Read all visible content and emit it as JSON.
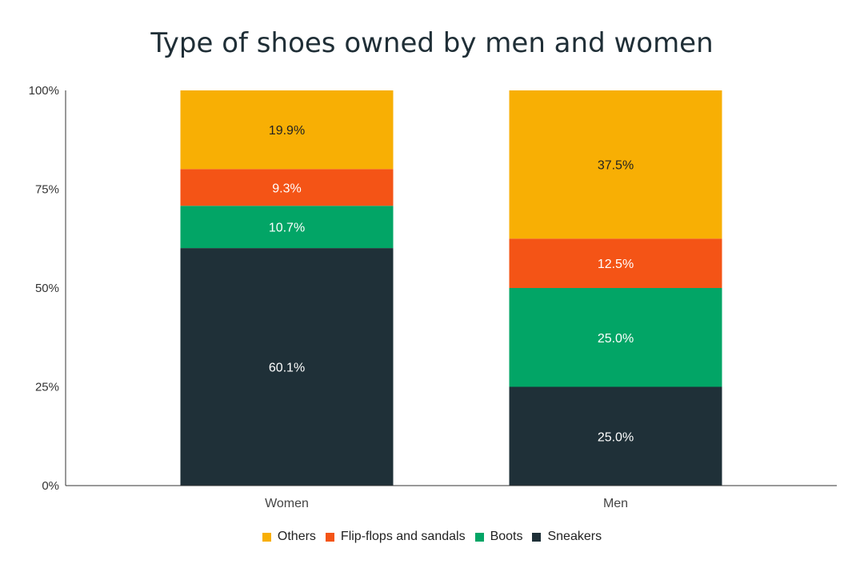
{
  "chart_data": {
    "type": "bar",
    "stacked": true,
    "title": "Type of shoes owned by men and women",
    "xlabel": "",
    "ylabel": "",
    "categories": [
      "Women",
      "Men"
    ],
    "ylim": [
      0,
      100
    ],
    "yticks": [
      "0%",
      "25%",
      "50%",
      "75%",
      "100%"
    ],
    "ytick_values": [
      0,
      25,
      50,
      75,
      100
    ],
    "grid": false,
    "legend_position": "bottom",
    "series": [
      {
        "name": "Sneakers",
        "color": "#1f3038",
        "label_color": "#ffffff",
        "values": [
          60.1,
          25.0
        ],
        "labels": [
          "60.1%",
          "25.0%"
        ]
      },
      {
        "name": "Boots",
        "color": "#02a566",
        "label_color": "#ffffff",
        "values": [
          10.7,
          25.0
        ],
        "labels": [
          "10.7%",
          "25.0%"
        ]
      },
      {
        "name": "Flip-flops and sandals",
        "color": "#f45416",
        "label_color": "#ffffff",
        "values": [
          9.3,
          12.5
        ],
        "labels": [
          "9.3%",
          "12.5%"
        ]
      },
      {
        "name": "Others",
        "color": "#f8af04",
        "label_color": "#222222",
        "values": [
          19.9,
          37.5
        ],
        "labels": [
          "19.9%",
          "37.5%"
        ]
      }
    ],
    "legend_order": [
      "Others",
      "Flip-flops and sandals",
      "Boots",
      "Sneakers"
    ]
  }
}
